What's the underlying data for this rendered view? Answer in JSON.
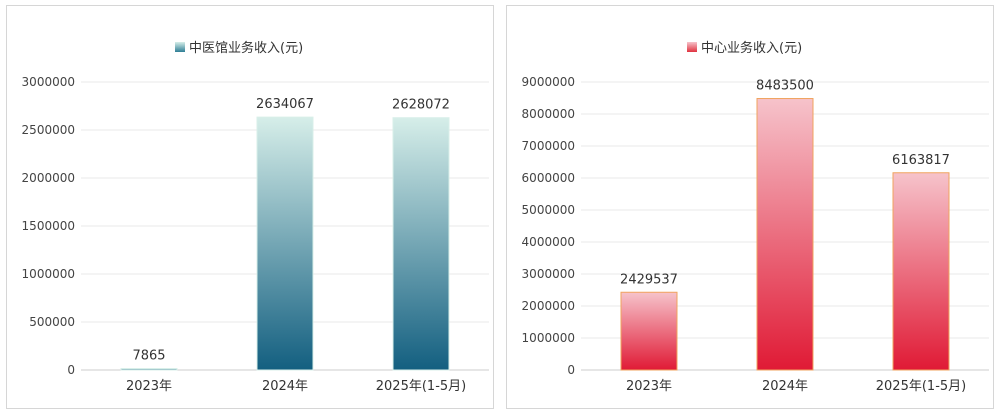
{
  "chart_data": [
    {
      "type": "bar",
      "legend": "中医馆业务收入(元)",
      "legend_position": "top-center",
      "categories": [
        "2023年",
        "2024年",
        "2025年(1-5月)"
      ],
      "values": [
        7865,
        2634067,
        2628072
      ],
      "value_labels": [
        "7865",
        "2634067",
        "2628072"
      ],
      "ylim": [
        0,
        3000000
      ],
      "yticks": [
        "0",
        "500000",
        "1000000",
        "1500000",
        "2000000",
        "2500000",
        "3000000"
      ],
      "grid": true,
      "colors": {
        "top": "#d6eee9",
        "bottom": "#135f80",
        "edge": "#d8efe9",
        "legend": "#2f7e95"
      }
    },
    {
      "type": "bar",
      "legend": "中心业务收入(元)",
      "legend_position": "top-center",
      "categories": [
        "2023年",
        "2024年",
        "2025年(1-5月)"
      ],
      "values": [
        2429537,
        8483500,
        6163817
      ],
      "value_labels": [
        "2429537",
        "8483500",
        "6163817"
      ],
      "ylim": [
        0,
        9000000
      ],
      "yticks": [
        "0",
        "1000000",
        "2000000",
        "3000000",
        "4000000",
        "5000000",
        "6000000",
        "7000000",
        "8000000",
        "9000000"
      ],
      "grid": true,
      "colors": {
        "top": "#f6c3cb",
        "bottom": "#e01a35",
        "edge": "#f0a35e",
        "legend": "#e0323f"
      }
    }
  ]
}
